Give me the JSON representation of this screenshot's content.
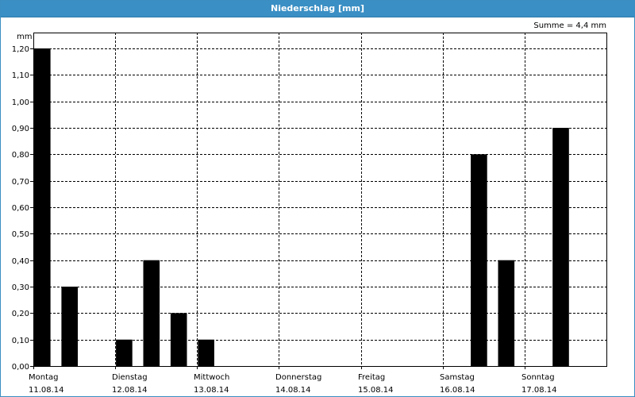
{
  "window": {
    "title": "Niederschlag [mm]"
  },
  "summary": {
    "sum_label": "Summe = 4,4 mm"
  },
  "colors": {
    "title_bar": "#3a8fc4",
    "bars": "#000000",
    "grid": "#000000"
  },
  "chart_data": {
    "type": "bar",
    "title": "Niederschlag [mm]",
    "ylabel": "mm",
    "ylim": [
      0,
      1.2
    ],
    "yticks": [
      "0,00",
      "0,10",
      "0,20",
      "0,30",
      "0,40",
      "0,50",
      "0,60",
      "0,70",
      "0,80",
      "0,90",
      "1,00",
      "1,10",
      "1,20"
    ],
    "grid": "dashed",
    "days": [
      {
        "name": "Montag",
        "date": "11.08.14"
      },
      {
        "name": "Dienstag",
        "date": "12.08.14"
      },
      {
        "name": "Mittwoch",
        "date": "13.08.14"
      },
      {
        "name": "Donnerstag",
        "date": "14.08.14"
      },
      {
        "name": "Freitag",
        "date": "15.08.14"
      },
      {
        "name": "Samstag",
        "date": "16.08.14"
      },
      {
        "name": "Sonntag",
        "date": "17.08.14"
      }
    ],
    "interval_hours": 8,
    "values": [
      1.2,
      0.3,
      0,
      0.1,
      0.4,
      0.2,
      0.1,
      0,
      0,
      0,
      0,
      0,
      0,
      0,
      0,
      0,
      0.8,
      0.4,
      0,
      0.9,
      0
    ]
  }
}
